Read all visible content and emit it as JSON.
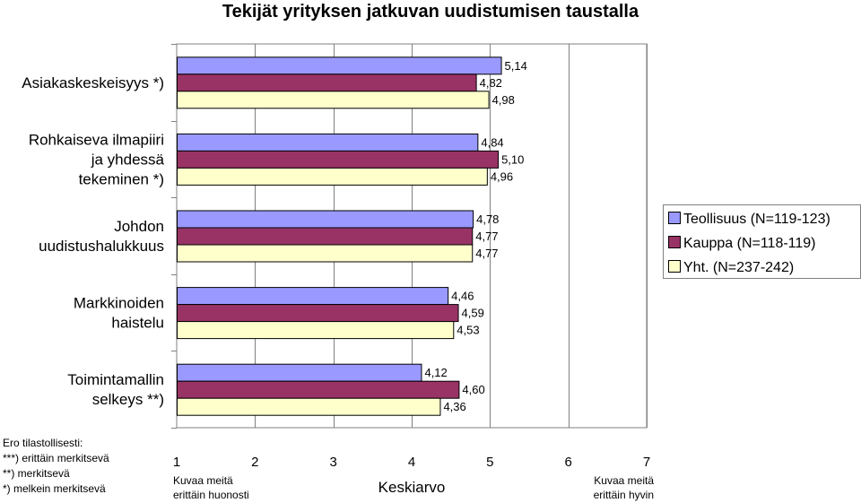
{
  "chart_data": {
    "type": "bar",
    "orientation": "horizontal",
    "title": "Tekijät yrityksen jatkuvan uudistumisen taustalla",
    "categories": [
      [
        "Asiakaskeskeisyys *)"
      ],
      [
        "Rohkaiseva ilmapiiri",
        "ja yhdessä",
        "tekeminen *)"
      ],
      [
        "Johdon",
        "uudistushalukkuus"
      ],
      [
        "Markkinoiden",
        "haistelu"
      ],
      [
        "Toimintamallin",
        "selkeys **)"
      ]
    ],
    "series": [
      {
        "name": "Teollisuus (N=119-123)",
        "color": "#9999ff",
        "values": [
          5.14,
          4.84,
          4.78,
          4.46,
          4.12
        ],
        "labels": [
          "5,14",
          "4,84",
          "4,78",
          "4,46",
          "4,12"
        ]
      },
      {
        "name": "Kauppa (N=118-119)",
        "color": "#993366",
        "values": [
          4.82,
          5.1,
          4.77,
          4.59,
          4.6
        ],
        "labels": [
          "4,82",
          "5,10",
          "4,77",
          "4,59",
          "4,60"
        ]
      },
      {
        "name": "Yht. (N=237-242)",
        "color": "#ffffcc",
        "values": [
          4.98,
          4.96,
          4.77,
          4.53,
          4.36
        ],
        "labels": [
          "4,98",
          "4,96",
          "4,77",
          "4,53",
          "4,36"
        ]
      }
    ],
    "xlim": [
      1,
      7
    ],
    "xticks": [
      "1",
      "2",
      "3",
      "4",
      "5",
      "6",
      "7"
    ],
    "xlabel": "Keskiarvo",
    "x_low_note": [
      "Kuvaa meitä",
      "erittäin huonosti"
    ],
    "x_high_note": [
      "Kuvaa meitä",
      "erittäin hyvin"
    ],
    "grid": "vertical",
    "legend_position": "right"
  },
  "footnotes": [
    "Ero tilastollisesti:",
    "***) erittäin merkitsevä",
    "**)  merkitsevä",
    "*)  melkein merkitsevä"
  ]
}
